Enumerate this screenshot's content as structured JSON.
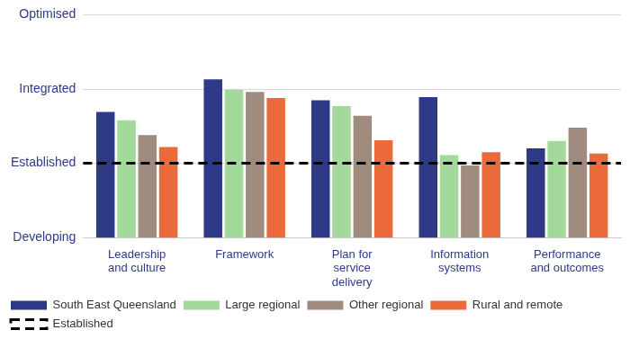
{
  "chart_data": {
    "type": "bar",
    "categories": [
      "Leadership and culture",
      "Framework",
      "Plan for service delivery",
      "Information systems",
      "Performance and outcomes"
    ],
    "series": [
      {
        "name": "South East Queensland",
        "color": "#2e3a87",
        "values": [
          2.69,
          3.13,
          2.85,
          2.89,
          2.2
        ]
      },
      {
        "name": "Large regional",
        "color": "#a3d99b",
        "values": [
          2.58,
          2.99,
          2.77,
          2.11,
          2.3
        ]
      },
      {
        "name": "Other regional",
        "color": "#a08c7f",
        "values": [
          2.38,
          2.96,
          2.64,
          1.97,
          2.48
        ]
      },
      {
        "name": "Rural and remote",
        "color": "#eb6a3c",
        "values": [
          2.22,
          2.88,
          2.31,
          2.15,
          2.13
        ]
      }
    ],
    "reference_line": {
      "name": "Established",
      "value": 2,
      "color": "#000000",
      "line_style": "dashed"
    },
    "ylim": [
      1,
      4
    ],
    "yticks": [
      {
        "value": 1,
        "label": "Developing"
      },
      {
        "value": 2,
        "label": "Established"
      },
      {
        "value": 3,
        "label": "Integrated"
      },
      {
        "value": 4,
        "label": "Optimised"
      }
    ],
    "grid": true,
    "legend": "bottom"
  }
}
